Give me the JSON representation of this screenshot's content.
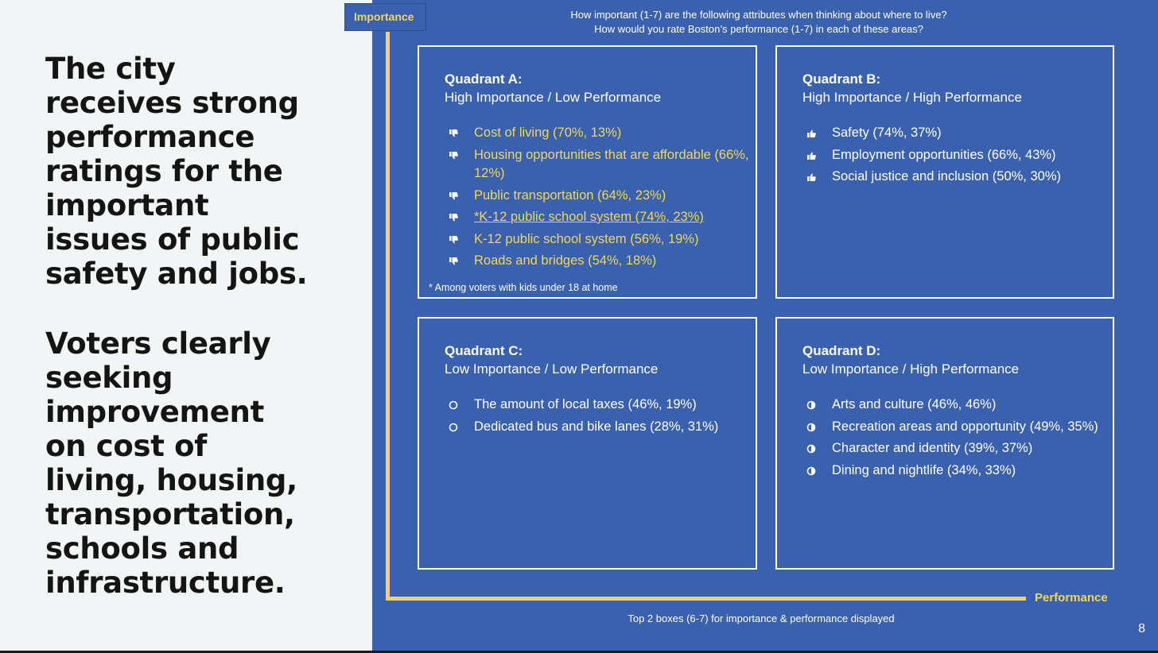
{
  "headline": {
    "text_1": "The city receives strong performance ratings for the important issues of public safety and jobs.",
    "text_2": "Voters clearly seeking improvement on cost of living, housing, transportation, schools and infrastructure."
  },
  "importance_label": "Importance",
  "performance_label": "Performance",
  "questions": {
    "line_1": "How important (1-7) are the following attributes when thinking about where to live?",
    "line_2": "How would you rate Boston’s performance (1-7) in each of these areas?"
  },
  "footer": {
    "note": "Top 2 boxes (6-7) for importance & performance displayed",
    "page_number": "8"
  },
  "colors": {
    "accent_yellow": "#f2d65a",
    "panel_blue": "#3a61ad",
    "text_dark": "#141414"
  },
  "quadrants": {
    "a": {
      "title": "Quadrant A:",
      "subtitle": "High Importance / Low Performance",
      "icon": "thumbs-down-icon",
      "items": [
        "Cost of living (70%, 13%)",
        "Housing opportunities that are affordable (66%, 12%)",
        "Public transportation (64%, 23%)",
        "*K-12 public school system (74%, 23%)",
        "K-12 public school system (56%, 19%)",
        "Roads and bridges (54%, 18%)"
      ],
      "note": "* Among voters with kids under 18 at home"
    },
    "b": {
      "title": "Quadrant B:",
      "subtitle": "High Importance / High Performance",
      "icon": "thumbs-up-icon",
      "items": [
        "Safety (74%, 37%)",
        "Employment opportunities (66%, 43%)",
        "Social justice and inclusion (50%, 30%)"
      ]
    },
    "c": {
      "title": "Quadrant C:",
      "subtitle": "Low Importance / Low Performance",
      "icon": "empty-circle-icon",
      "items": [
        "The amount of local taxes (46%, 19%)",
        "Dedicated bus and bike lanes (28%, 31%)"
      ]
    },
    "d": {
      "title": "Quadrant D:",
      "subtitle": "Low Importance / High Performance",
      "icon": "half-circle-icon",
      "items": [
        "Arts and culture (46%, 46%)",
        "Recreation areas and opportunity (49%, 35%)",
        "Character and identity (39%, 37%)",
        "Dining and nightlife (34%, 33%)"
      ]
    }
  }
}
